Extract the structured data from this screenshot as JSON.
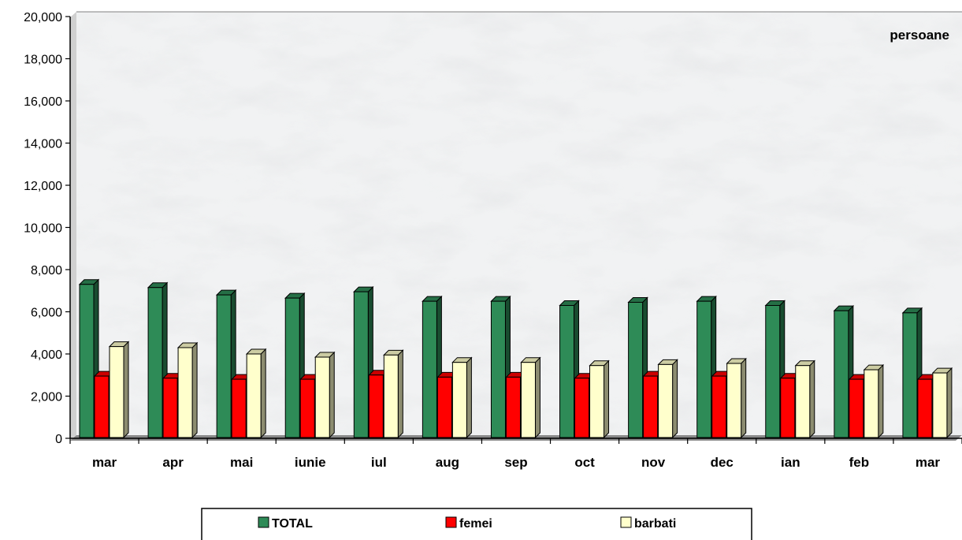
{
  "chart_data": {
    "type": "bar",
    "unit_label": "persoane",
    "categories": [
      "mar",
      "apr",
      "mai",
      "iunie",
      "iul",
      "aug",
      "sep",
      "oct",
      "nov",
      "dec",
      "ian",
      "feb",
      "mar"
    ],
    "series": [
      {
        "name": "TOTAL",
        "color": "#2e8b57",
        "values": [
          7300,
          7150,
          6800,
          6650,
          6950,
          6500,
          6500,
          6300,
          6450,
          6500,
          6300,
          6050,
          5950
        ]
      },
      {
        "name": "femei",
        "color": "#ff0000",
        "values": [
          2950,
          2850,
          2800,
          2800,
          3000,
          2900,
          2900,
          2850,
          2950,
          2950,
          2850,
          2800,
          2800
        ]
      },
      {
        "name": "barbati",
        "color": "#ffffcc",
        "values": [
          4350,
          4300,
          4000,
          3850,
          3950,
          3600,
          3600,
          3450,
          3500,
          3550,
          3450,
          3250,
          3100
        ]
      }
    ],
    "y_ticks": [
      "0",
      "2,000",
      "4,000",
      "6,000",
      "8,000",
      "10,000",
      "12,000",
      "14,000",
      "16,000",
      "18,000",
      "20,000"
    ],
    "ylim": [
      0,
      20000
    ],
    "grid": false,
    "legend_position": "bottom"
  }
}
